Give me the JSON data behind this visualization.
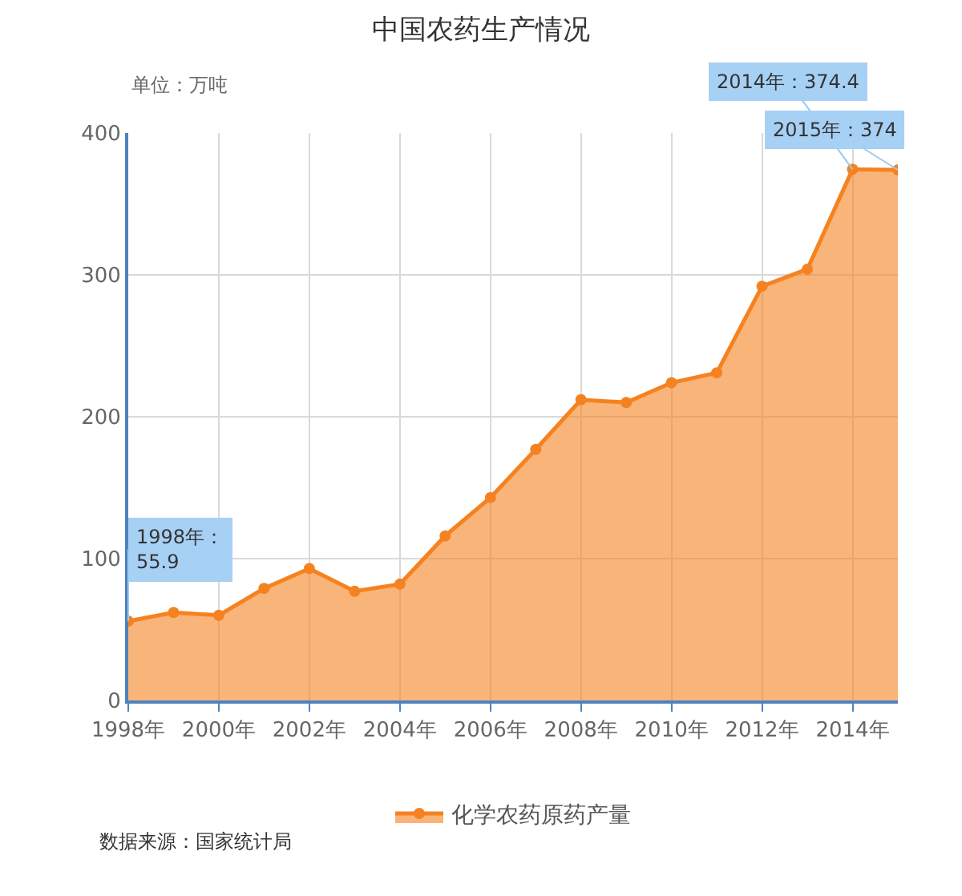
{
  "chart_data": {
    "type": "area",
    "title": "中国农药生产情况",
    "ylabel": "单位：万吨",
    "x": [
      1998,
      1999,
      2000,
      2001,
      2002,
      2003,
      2004,
      2005,
      2006,
      2007,
      2008,
      2009,
      2010,
      2011,
      2012,
      2013,
      2014,
      2015
    ],
    "series": [
      {
        "name": "化学农药原药产量",
        "color": "#f58220",
        "values": [
          55.9,
          62,
          60,
          79,
          93,
          77,
          82,
          116,
          143,
          177,
          212,
          210,
          224,
          231,
          292,
          304,
          374.4,
          374
        ]
      }
    ],
    "xlim": [
      1998,
      2015
    ],
    "xticks": [
      {
        "value": 1998,
        "label": "1998年"
      },
      {
        "value": 2000,
        "label": "2000年"
      },
      {
        "value": 2002,
        "label": "2002年"
      },
      {
        "value": 2004,
        "label": "2004年"
      },
      {
        "value": 2006,
        "label": "2006年"
      },
      {
        "value": 2008,
        "label": "2008年"
      },
      {
        "value": 2010,
        "label": "2010年"
      },
      {
        "value": 2012,
        "label": "2012年"
      },
      {
        "value": 2014,
        "label": "2014年"
      }
    ],
    "ylim": [
      0,
      400
    ],
    "yticks": [
      0,
      100,
      200,
      300,
      400
    ],
    "grid": true,
    "legend": "bottom",
    "marker": "circle",
    "line_style": "solid",
    "annotations": [
      {
        "text": "1998年：\n55.9",
        "x": 1998,
        "y": 55.9
      },
      {
        "text": "2014年：374.4",
        "x": 2014,
        "y": 374.4
      },
      {
        "text": "2015年：374",
        "x": 2015,
        "y": 374
      },
      "数据来源：国家统计局"
    ]
  }
}
